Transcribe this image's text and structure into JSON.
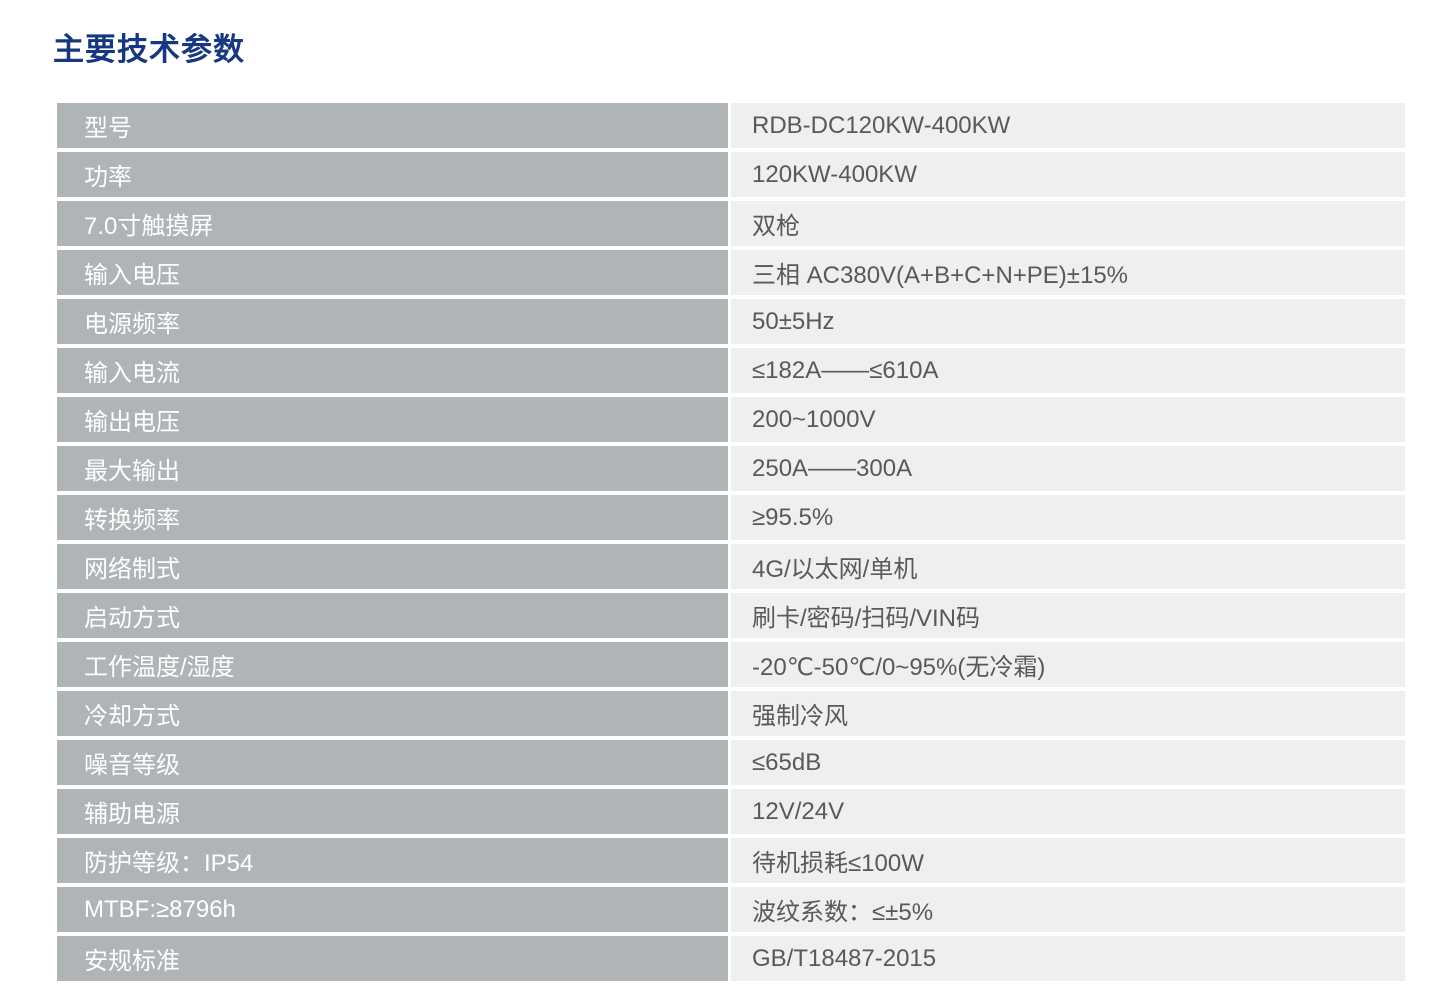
{
  "page_title": "主要技术参数",
  "colors": {
    "title": "#17387E",
    "label_bg": "#AFB4B7",
    "label_text": "#FFFFFF",
    "value_bg": "#EEEFEF",
    "value_text": "#58595B"
  },
  "spec_table": {
    "rows": [
      {
        "label": "型号",
        "value": "RDB-DC120KW-400KW"
      },
      {
        "label": "功率",
        "value": "120KW-400KW"
      },
      {
        "label": "7.0寸触摸屏",
        "value": "双枪"
      },
      {
        "label": "输入电压",
        "value": "三相 AC380V(A+B+C+N+PE)±15%"
      },
      {
        "label": "电源频率",
        "value": "50±5Hz"
      },
      {
        "label": "输入电流",
        "value": "≤182A——≤610A"
      },
      {
        "label": "输出电压",
        "value": "200~1000V"
      },
      {
        "label": "最大输出",
        "value": "250A——300A"
      },
      {
        "label": "转换频率",
        "value": "≥95.5%"
      },
      {
        "label": "网络制式",
        "value": "4G/以太网/单机"
      },
      {
        "label": "启动方式",
        "value": "刷卡/密码/扫码/VIN码"
      },
      {
        "label": "工作温度/湿度",
        "value": "-20℃-50℃/0~95%(无冷霜)"
      },
      {
        "label": "冷却方式",
        "value": "强制冷风"
      },
      {
        "label": "噪音等级",
        "value": "≤65dB"
      },
      {
        "label": "辅助电源",
        "value": "12V/24V"
      },
      {
        "label": "防护等级：IP54",
        "value": "待机损耗≤100W"
      },
      {
        "label": "MTBF:≥8796h",
        "value": "波纹系数：≤±5%"
      },
      {
        "label": "安规标准",
        "value": "GB/T18487-2015"
      }
    ]
  }
}
